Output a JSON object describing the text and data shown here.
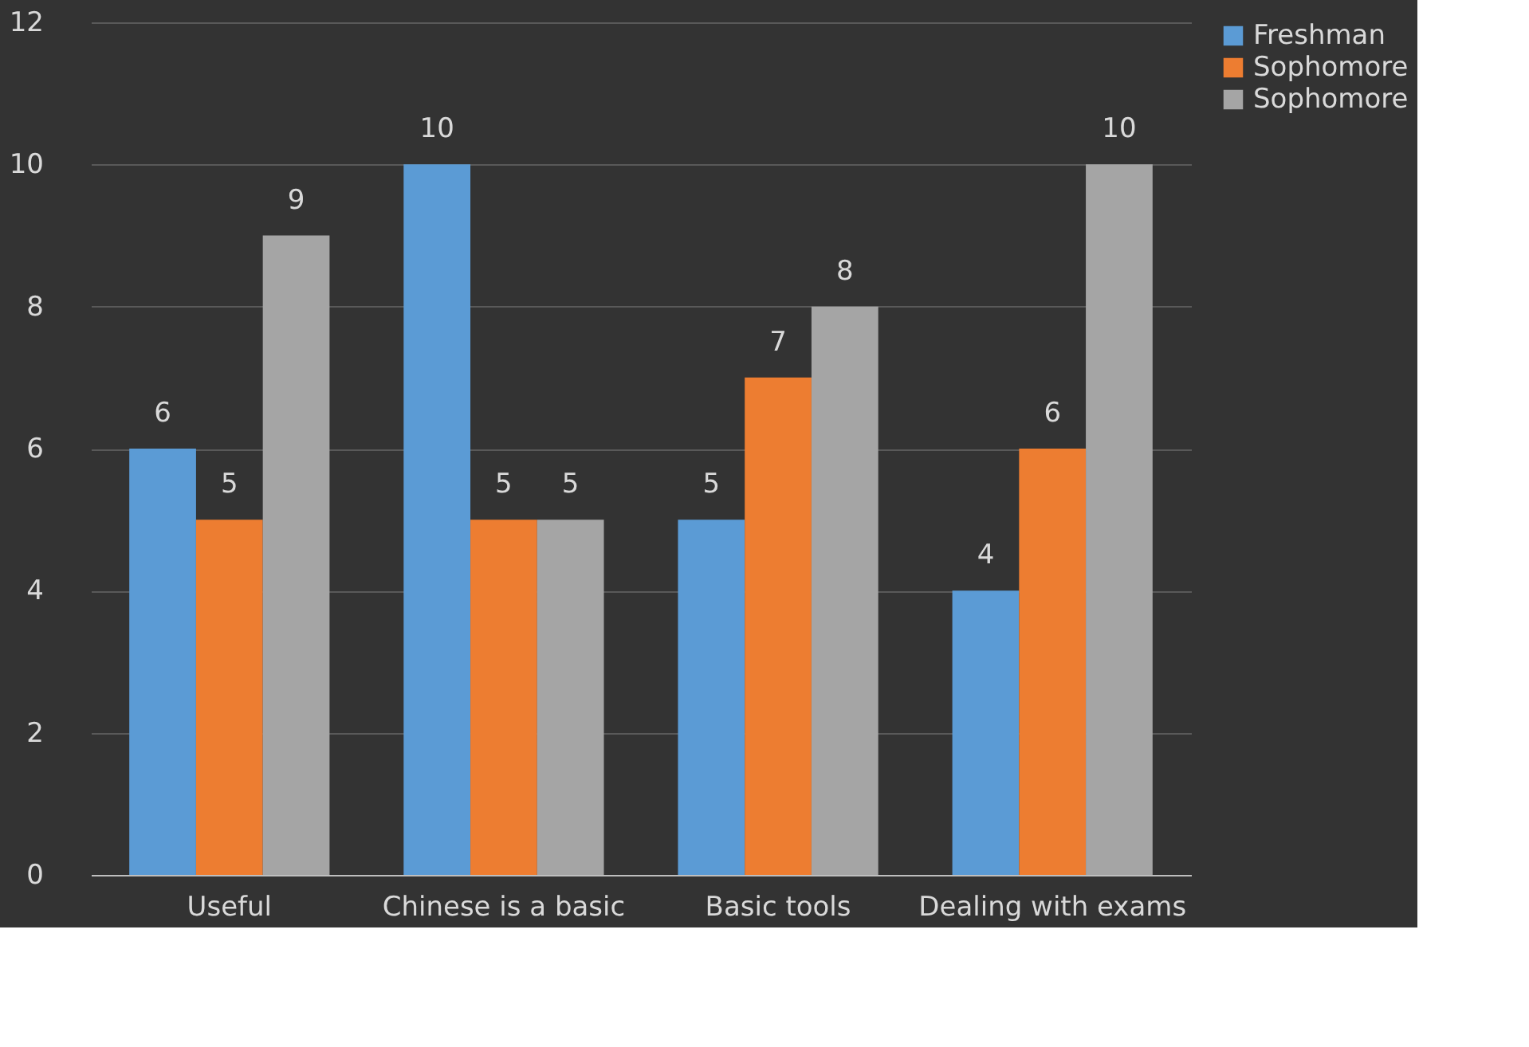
{
  "chart_data": {
    "type": "bar",
    "categories": [
      "Useful",
      "Chinese is a basic",
      "Basic tools",
      "Dealing with exams"
    ],
    "series": [
      {
        "name": "Freshman",
        "color": "#5b9bd5",
        "values": [
          6,
          10,
          5,
          4
        ]
      },
      {
        "name": "Sophomore",
        "color": "#ed7d31",
        "values": [
          5,
          5,
          7,
          6
        ]
      },
      {
        "name": "Sophomore",
        "color": "#a5a5a5",
        "values": [
          9,
          5,
          8,
          10
        ]
      }
    ],
    "ylim": [
      0,
      12
    ],
    "yticks": [
      0,
      2,
      4,
      6,
      8,
      10,
      12
    ],
    "grid": "y",
    "legend": "right",
    "data_labels": true
  }
}
